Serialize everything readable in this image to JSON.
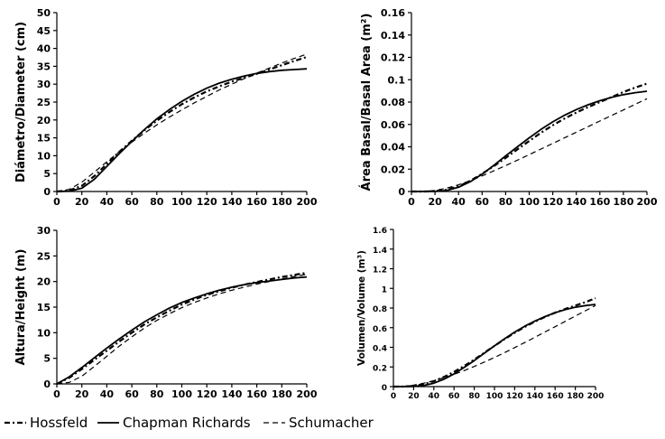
{
  "legend": {
    "items": [
      {
        "label": "Hossfeld",
        "dash": "6,3,2,3",
        "width": 2.2
      },
      {
        "label": "Chapman Richards",
        "dash": "",
        "width": 1.8
      },
      {
        "label": "Schumacher",
        "dash": "6,4",
        "width": 1.2
      }
    ]
  },
  "chart_data": [
    {
      "type": "line",
      "ylabel": "Diámetro/Diameter (cm)",
      "x_ticks": [
        0,
        20,
        40,
        60,
        80,
        100,
        120,
        140,
        160,
        180,
        200
      ],
      "y_ticks": [
        0,
        5,
        10,
        15,
        20,
        25,
        30,
        35,
        40,
        45,
        50
      ],
      "y_tick_labels": [
        "0",
        "5",
        "10",
        "15",
        "20",
        "25",
        "30",
        "35",
        "40",
        "45",
        "50"
      ],
      "xlim": [
        0,
        200
      ],
      "ylim": [
        0,
        50
      ],
      "x": [
        0,
        10,
        20,
        30,
        40,
        50,
        60,
        70,
        80,
        90,
        100,
        110,
        120,
        130,
        140,
        150,
        160,
        170,
        180,
        190,
        200
      ],
      "series": [
        {
          "name": "Hossfeld",
          "values": [
            0,
            0.3,
            1.6,
            4.3,
            7.7,
            11.1,
            14.2,
            17.1,
            19.8,
            22.2,
            24.4,
            26.3,
            28.0,
            29.4,
            30.7,
            31.8,
            32.9,
            34.1,
            35.3,
            36.5,
            37.6
          ]
        },
        {
          "name": "Chapman Richards",
          "values": [
            0,
            0.1,
            0.9,
            3.4,
            7.0,
            10.6,
            14.0,
            17.3,
            20.3,
            22.9,
            25.2,
            27.2,
            28.9,
            30.3,
            31.4,
            32.3,
            33.0,
            33.5,
            33.9,
            34.1,
            34.3
          ]
        },
        {
          "name": "Schumacher",
          "values": [
            0,
            0.6,
            2.6,
            5.4,
            8.3,
            11.1,
            13.8,
            16.3,
            18.6,
            20.8,
            22.8,
            24.8,
            26.6,
            28.4,
            30.0,
            31.6,
            33.1,
            34.5,
            35.9,
            37.2,
            38.4
          ]
        }
      ]
    },
    {
      "type": "line",
      "ylabel": "Área Basal/Basal Area (m²)",
      "x_ticks": [
        0,
        20,
        40,
        60,
        80,
        100,
        120,
        140,
        160,
        180,
        200
      ],
      "y_ticks": [
        0,
        0.02,
        0.04,
        0.06,
        0.08,
        0.1,
        0.12,
        0.14,
        0.16
      ],
      "y_tick_labels": [
        "0",
        "0.02",
        "0.04",
        "0.06",
        "0.08",
        "0.1",
        "0.12",
        "0.14",
        "0.16"
      ],
      "xlim": [
        0,
        200
      ],
      "ylim": [
        0,
        0.16
      ],
      "x": [
        0,
        10,
        20,
        30,
        40,
        50,
        60,
        70,
        80,
        90,
        100,
        110,
        120,
        130,
        140,
        150,
        160,
        170,
        180,
        190,
        200
      ],
      "series": [
        {
          "name": "Hossfeld",
          "values": [
            0,
            0,
            0.0003,
            0.0015,
            0.0046,
            0.0096,
            0.0158,
            0.0228,
            0.0301,
            0.0377,
            0.0452,
            0.0525,
            0.0592,
            0.0652,
            0.0706,
            0.0755,
            0.08,
            0.0845,
            0.089,
            0.093,
            0.0965
          ]
        },
        {
          "name": "Chapman Richards",
          "values": [
            0,
            0,
            0.0001,
            0.0009,
            0.0038,
            0.0088,
            0.0155,
            0.0234,
            0.0318,
            0.04,
            0.048,
            0.0555,
            0.0623,
            0.0682,
            0.0733,
            0.0776,
            0.0812,
            0.0842,
            0.0866,
            0.0884,
            0.0897
          ]
        },
        {
          "name": "Schumacher",
          "values": [
            0,
            0.0002,
            0.0009,
            0.003,
            0.006,
            0.0098,
            0.014,
            0.0185,
            0.0232,
            0.028,
            0.033,
            0.038,
            0.043,
            0.048,
            0.053,
            0.058,
            0.063,
            0.068,
            0.073,
            0.078,
            0.083
          ]
        }
      ]
    },
    {
      "type": "line",
      "ylabel": "Altura/Height (m)",
      "x_ticks": [
        0,
        20,
        40,
        60,
        80,
        100,
        120,
        140,
        160,
        180,
        200
      ],
      "y_ticks": [
        0,
        5,
        10,
        15,
        20,
        25,
        30
      ],
      "y_tick_labels": [
        "0",
        "5",
        "10",
        "15",
        "20",
        "25",
        "30"
      ],
      "xlim": [
        0,
        200
      ],
      "ylim": [
        0,
        30
      ],
      "x": [
        0,
        10,
        20,
        30,
        40,
        50,
        60,
        70,
        80,
        90,
        100,
        110,
        120,
        130,
        140,
        150,
        160,
        170,
        180,
        190,
        200
      ],
      "series": [
        {
          "name": "Hossfeld",
          "values": [
            0,
            1.2,
            2.9,
            4.7,
            6.5,
            8.3,
            10.0,
            11.6,
            13.0,
            14.3,
            15.5,
            16.5,
            17.4,
            18.1,
            18.8,
            19.4,
            19.9,
            20.4,
            20.9,
            21.3,
            21.7
          ]
        },
        {
          "name": "Chapman Richards",
          "values": [
            0,
            1.4,
            3.2,
            5.1,
            7.0,
            8.8,
            10.5,
            12.1,
            13.5,
            14.8,
            15.9,
            16.8,
            17.6,
            18.3,
            18.9,
            19.4,
            19.8,
            20.1,
            20.4,
            20.7,
            20.9
          ]
        },
        {
          "name": "Schumacher",
          "values": [
            0,
            0.3,
            1.5,
            3.4,
            5.4,
            7.4,
            9.2,
            10.9,
            12.4,
            13.7,
            14.9,
            15.9,
            16.8,
            17.6,
            18.3,
            18.9,
            19.5,
            20.0,
            20.5,
            21.0,
            21.4
          ]
        }
      ]
    },
    {
      "type": "line",
      "ylabel": "Volumen/Volume (m³)",
      "x_ticks": [
        0,
        20,
        40,
        60,
        80,
        100,
        120,
        140,
        160,
        180,
        200
      ],
      "y_ticks": [
        0,
        0.2,
        0.4,
        0.6,
        0.8,
        1,
        1.2,
        1.4,
        1.6
      ],
      "y_tick_labels": [
        "0",
        "0.2",
        "0.4",
        "0.6",
        "0.8",
        "1",
        "1.2",
        "1.4",
        "1.6"
      ],
      "xlim": [
        0,
        200
      ],
      "ylim": [
        0,
        1.6
      ],
      "x": [
        0,
        10,
        20,
        30,
        40,
        50,
        60,
        70,
        80,
        90,
        100,
        110,
        120,
        130,
        140,
        150,
        160,
        170,
        180,
        190,
        200
      ],
      "series": [
        {
          "name": "Hossfeld",
          "values": [
            0,
            0.001,
            0.006,
            0.025,
            0.055,
            0.098,
            0.15,
            0.21,
            0.275,
            0.345,
            0.415,
            0.483,
            0.548,
            0.608,
            0.662,
            0.71,
            0.752,
            0.79,
            0.825,
            0.86,
            0.9
          ]
        },
        {
          "name": "Chapman Richards",
          "values": [
            0,
            0,
            0.003,
            0.012,
            0.035,
            0.075,
            0.13,
            0.195,
            0.265,
            0.34,
            0.415,
            0.487,
            0.555,
            0.615,
            0.668,
            0.713,
            0.752,
            0.783,
            0.808,
            0.825,
            0.837
          ]
        },
        {
          "name": "Schumacher",
          "values": [
            0,
            0.003,
            0.015,
            0.035,
            0.06,
            0.09,
            0.125,
            0.163,
            0.205,
            0.25,
            0.297,
            0.346,
            0.397,
            0.449,
            0.502,
            0.556,
            0.61,
            0.664,
            0.718,
            0.772,
            0.826
          ]
        }
      ]
    }
  ]
}
